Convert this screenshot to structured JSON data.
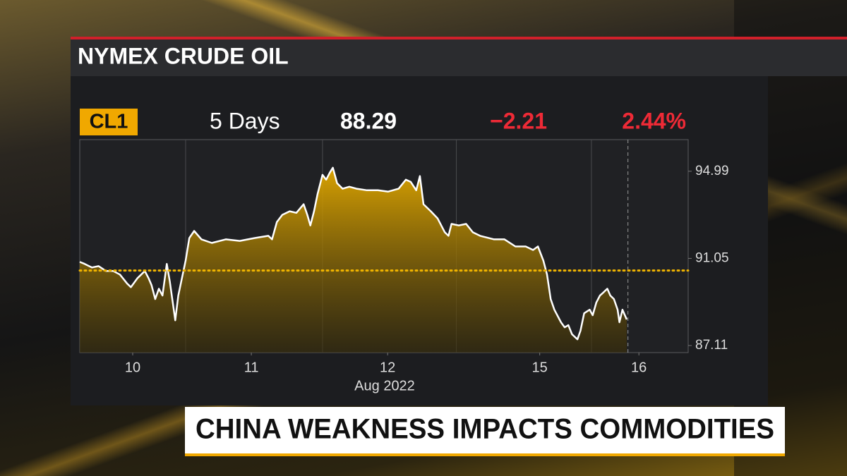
{
  "headline": "CHINA WEAKNESS IMPACTS COMMODITIES",
  "chart_data": {
    "type": "line",
    "title": "NYMEX CRUDE OIL",
    "symbol": "CL1",
    "period": "5 Days",
    "last": 88.29,
    "change": "−2.21",
    "change_pct": "2.44%",
    "x_label": "Aug 2022",
    "xlim": [
      0,
      100
    ],
    "xticks": [
      {
        "value": 8.7,
        "label": "10"
      },
      {
        "value": 28.2,
        "label": "11"
      },
      {
        "value": 50.6,
        "label": "12"
      },
      {
        "value": 75.6,
        "label": "15"
      },
      {
        "value": 91.9,
        "label": "16"
      }
    ],
    "ylim": [
      86.79,
      96.42
    ],
    "yticks": [
      87.11,
      91.05,
      94.99
    ],
    "reference_line": 90.5,
    "series": [
      {
        "color": "#ffffff",
        "fill": "#e3a900",
        "x": [
          0,
          0.8,
          2.0,
          3.1,
          4.3,
          5.5,
          6.6,
          7.8,
          8.4,
          9.5,
          10.7,
          11.3,
          11.8,
          12.4,
          13.0,
          13.6,
          14.3,
          14.8,
          15.7,
          16.2,
          16.8,
          17.4,
          18.0,
          18.8,
          20.0,
          21.7,
          24.0,
          26.3,
          28.7,
          31.0,
          31.6,
          32.4,
          33.3,
          34.5,
          35.6,
          36.8,
          37.4,
          37.9,
          38.5,
          39.1,
          39.9,
          40.5,
          41.1,
          41.6,
          42.3,
          43.2,
          44.3,
          45.5,
          47.2,
          49.0,
          50.7,
          52.4,
          53.6,
          54.4,
          55.3,
          55.9,
          56.5,
          57.7,
          58.8,
          60.0,
          60.6,
          61.1,
          62.3,
          63.5,
          64.6,
          65.8,
          68.1,
          69.8,
          71.6,
          73.3,
          74.5,
          75.3,
          76.2,
          76.8,
          77.4,
          78.0,
          79.1,
          79.7,
          80.3,
          80.9,
          81.8,
          82.3,
          82.9,
          83.8,
          84.3,
          84.9,
          85.5,
          86.1,
          86.7,
          87.2,
          87.8,
          88.4,
          88.7,
          89.2,
          89.9
        ],
        "values": [
          90.89,
          90.8,
          90.64,
          90.7,
          90.48,
          90.48,
          90.32,
          89.91,
          89.75,
          90.16,
          90.48,
          90.16,
          89.84,
          89.21,
          89.68,
          89.37,
          90.8,
          90.0,
          88.25,
          89.37,
          90.16,
          90.95,
          91.97,
          92.29,
          91.91,
          91.75,
          91.91,
          91.84,
          91.97,
          92.07,
          91.91,
          92.7,
          93.02,
          93.18,
          93.11,
          93.5,
          93.02,
          92.54,
          93.18,
          93.97,
          94.83,
          94.61,
          94.93,
          95.15,
          94.45,
          94.2,
          94.29,
          94.2,
          94.13,
          94.13,
          94.07,
          94.2,
          94.61,
          94.51,
          94.13,
          94.77,
          93.5,
          93.18,
          92.86,
          92.23,
          92.07,
          92.61,
          92.54,
          92.61,
          92.23,
          92.07,
          91.91,
          91.91,
          91.59,
          91.59,
          91.43,
          91.59,
          90.95,
          90.32,
          89.21,
          88.73,
          88.16,
          87.93,
          88.03,
          87.62,
          87.39,
          87.78,
          88.57,
          88.73,
          88.48,
          89.05,
          89.37,
          89.52,
          89.68,
          89.37,
          89.21,
          88.73,
          88.16,
          88.73,
          88.29
        ]
      }
    ]
  }
}
